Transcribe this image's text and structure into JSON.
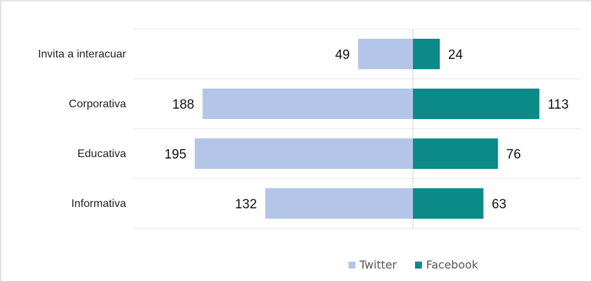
{
  "chart_data": {
    "type": "bar",
    "orientation": "horizontal-diverging",
    "categories": [
      "Invita a interacuar",
      "Corporativa",
      "Educativa",
      "Informativa"
    ],
    "series": [
      {
        "name": "Twitter",
        "values": [
          49,
          188,
          195,
          132
        ],
        "color": "#b4c6e7"
      },
      {
        "name": "Facebook",
        "values": [
          24,
          113,
          76,
          63
        ],
        "color": "#0b8a88"
      }
    ],
    "title": "",
    "xlabel": "",
    "ylabel": "",
    "grid": true,
    "legend_position": "bottom-right"
  }
}
